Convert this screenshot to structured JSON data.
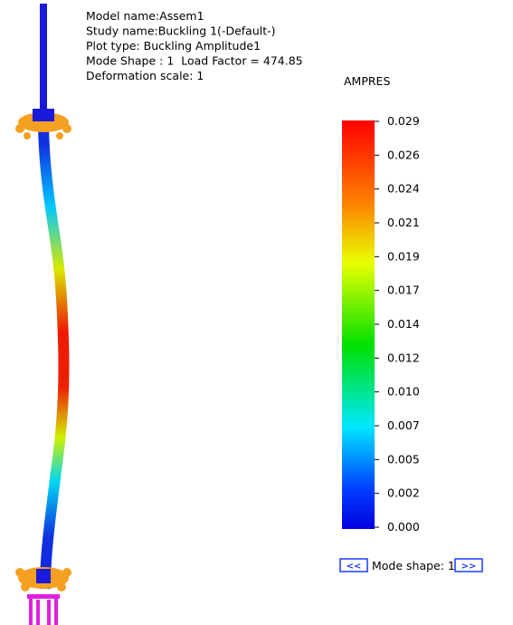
{
  "header": {
    "lines": [
      "Model name:Assem1",
      "Study name:Buckling 1(-Default-)",
      "Plot type: Buckling Amplitude1",
      "Mode Shape : 1  Load Factor = 474.85",
      "Deformation scale: 1"
    ]
  },
  "legend": {
    "title": "AMPRES",
    "labels": [
      "0.029",
      "0.026",
      "0.024",
      "0.021",
      "0.019",
      "0.017",
      "0.014",
      "0.012",
      "0.010",
      "0.007",
      "0.005",
      "0.002",
      "0.000"
    ]
  },
  "navigation": {
    "prev": "<<",
    "label": "Mode shape: 1",
    "next": ">>"
  }
}
